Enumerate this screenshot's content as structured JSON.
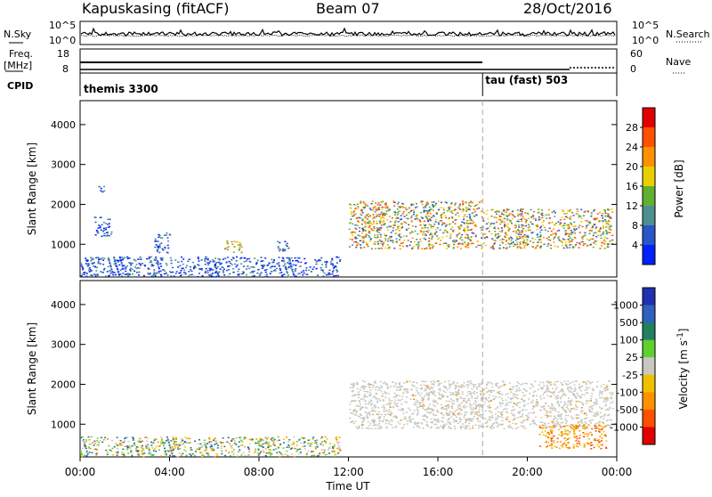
{
  "header": {
    "station": "Kapuskasing (fitACF)",
    "beam": "Beam 07",
    "date": "28/Oct/2016"
  },
  "noise_panel": {
    "left_label": "N.Sky",
    "left_ticks": [
      "10^5",
      "10^0"
    ],
    "right_ticks": [
      "10^5",
      "10^0"
    ],
    "right_label": "N.Search"
  },
  "freq_panel": {
    "left_label_top": "Freq.",
    "left_label_unit": "[MHz]",
    "left_ticks": [
      "18",
      "8"
    ],
    "right_ticks": [
      "60",
      "0"
    ],
    "right_label": "Nave"
  },
  "cpid_panel": {
    "label": "CPID",
    "programs": [
      {
        "name": "themis 3300",
        "start_hour": 0
      },
      {
        "name": "tau (fast) 503",
        "start_hour": 18
      }
    ]
  },
  "chart_data": [
    {
      "type": "heatmap",
      "parameter": "Power",
      "ylabel": "Slant Range [km]",
      "ylim": [
        180,
        4600
      ],
      "xlim": [
        0,
        24
      ],
      "y_ticks": [
        1000,
        2000,
        3000,
        4000
      ],
      "colorbar": {
        "label": "Power [dB]",
        "ticks": [
          "4",
          "8",
          "12",
          "16",
          "20",
          "24",
          "28"
        ],
        "colors": [
          "#0020ff",
          "#2a55c8",
          "#4f8f8f",
          "#60b030",
          "#e8d000",
          "#ff9000",
          "#ff5000",
          "#e00000"
        ]
      },
      "regions": [
        {
          "t": [
            0.0,
            11.6
          ],
          "r": [
            200,
            700
          ],
          "level": "low-mixed"
        },
        {
          "t": [
            0.6,
            1.4
          ],
          "r": [
            1200,
            1700
          ],
          "level": "low"
        },
        {
          "t": [
            0.8,
            1.1
          ],
          "r": [
            2300,
            2500
          ],
          "level": "low"
        },
        {
          "t": [
            3.3,
            4.0
          ],
          "r": [
            800,
            1300
          ],
          "level": "low"
        },
        {
          "t": [
            6.4,
            7.2
          ],
          "r": [
            800,
            1100
          ],
          "level": "medium"
        },
        {
          "t": [
            8.8,
            9.3
          ],
          "r": [
            800,
            1100
          ],
          "level": "low"
        },
        {
          "t": [
            12.0,
            18.0
          ],
          "r": [
            900,
            2100
          ],
          "level": "strong-band"
        },
        {
          "t": [
            18.0,
            23.8
          ],
          "r": [
            900,
            1900
          ],
          "level": "strong-band"
        }
      ]
    },
    {
      "type": "heatmap",
      "parameter": "Velocity",
      "ylabel": "Slant Range [km]",
      "ylim": [
        180,
        4600
      ],
      "xlim": [
        0,
        24
      ],
      "y_ticks": [
        1000,
        2000,
        3000,
        4000
      ],
      "colorbar": {
        "label": "Velocity [m s-1]",
        "ticks": [
          "1000",
          "500",
          "100",
          "25",
          "-25",
          "-100",
          "-500",
          "-1000"
        ],
        "colors": [
          "#2030b0",
          "#3060c0",
          "#208060",
          "#60d030",
          "#c8c8c0",
          "#f0c000",
          "#ff9000",
          "#ff5000",
          "#e00000"
        ]
      },
      "regions": [
        {
          "t": [
            0.0,
            11.6
          ],
          "r": [
            200,
            700
          ],
          "level": "mixed"
        },
        {
          "t": [
            12.0,
            23.8
          ],
          "r": [
            900,
            2100
          ],
          "level": "near-zero-grey"
        },
        {
          "t": [
            20.5,
            23.5
          ],
          "r": [
            400,
            1000
          ],
          "level": "negative-orange"
        }
      ]
    }
  ],
  "time_axis": {
    "ticks": [
      "00:00",
      "04:00",
      "08:00",
      "12:00",
      "16:00",
      "20:00",
      "00:00"
    ],
    "label": "Time UT",
    "xlim": [
      0,
      24
    ],
    "marker_hour": 18
  },
  "colors": {
    "axis": "#000000",
    "marker_line": "#aaaaaa"
  }
}
